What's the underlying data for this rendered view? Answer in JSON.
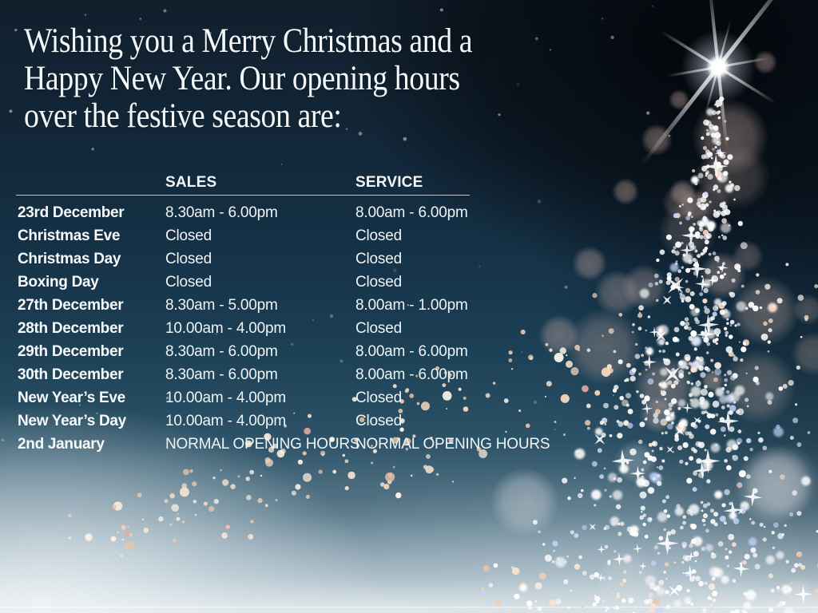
{
  "heading": {
    "lines": [
      "Wishing you a Merry Christmas and a",
      "Happy New Year. Our opening hours",
      "over the festive season are:"
    ]
  },
  "hours_table": {
    "header": {
      "sales": "SALES",
      "service": "SERVICE"
    },
    "rows": [
      {
        "day": "23rd December",
        "sales": "8.30am - 6.00pm",
        "service": "8.00am - 6.00pm"
      },
      {
        "day": "Christmas Eve",
        "sales": "Closed",
        "service": "Closed"
      },
      {
        "day": "Christmas Day",
        "sales": "Closed",
        "service": "Closed"
      },
      {
        "day": "Boxing Day",
        "sales": "Closed",
        "service": "Closed"
      },
      {
        "day": "27th December",
        "sales": "8.30am - 5.00pm",
        "service": "8.00am - 1.00pm"
      },
      {
        "day": "28th December",
        "sales": "10.00am - 4.00pm",
        "service": "Closed"
      },
      {
        "day": "29th December",
        "sales": "8.30am - 6.00pm",
        "service": "8.00am - 6.00pm"
      },
      {
        "day": "30th December",
        "sales": "8.30am - 6.00pm",
        "service": "8.00am - 6.00pm"
      },
      {
        "day": "New Year’s Eve",
        "sales": "10.00am - 4.00pm",
        "service": "Closed"
      },
      {
        "day": "New Year’s Day",
        "sales": "10.00am - 4.00pm",
        "service": "Closed"
      },
      {
        "day": "2nd January",
        "sales": "NORMAL OPENING HOURS",
        "service": "NORMAL OPENING HOURS"
      }
    ]
  },
  "decor": {
    "art": "christmas-tree-of-lights",
    "colors": {
      "sky_top": "#111f2c",
      "sky_mid": "#1d4156",
      "mist_bottom": "#edf0f1",
      "light_white": "#ffffff",
      "light_blue": "#c9d6ff",
      "light_warm": "#ffe2d2",
      "speckle_gold_1": "#f6e3cf",
      "speckle_gold_2": "#f0d2b8",
      "speckle_gold_3": "#ecc4a6",
      "speckle_gold_4": "#fdf1e4",
      "speckle_pink": "#e8a9a0",
      "bokeh_rose": "#cdb0a6",
      "bokeh_pale": "#dfe0e4"
    }
  }
}
